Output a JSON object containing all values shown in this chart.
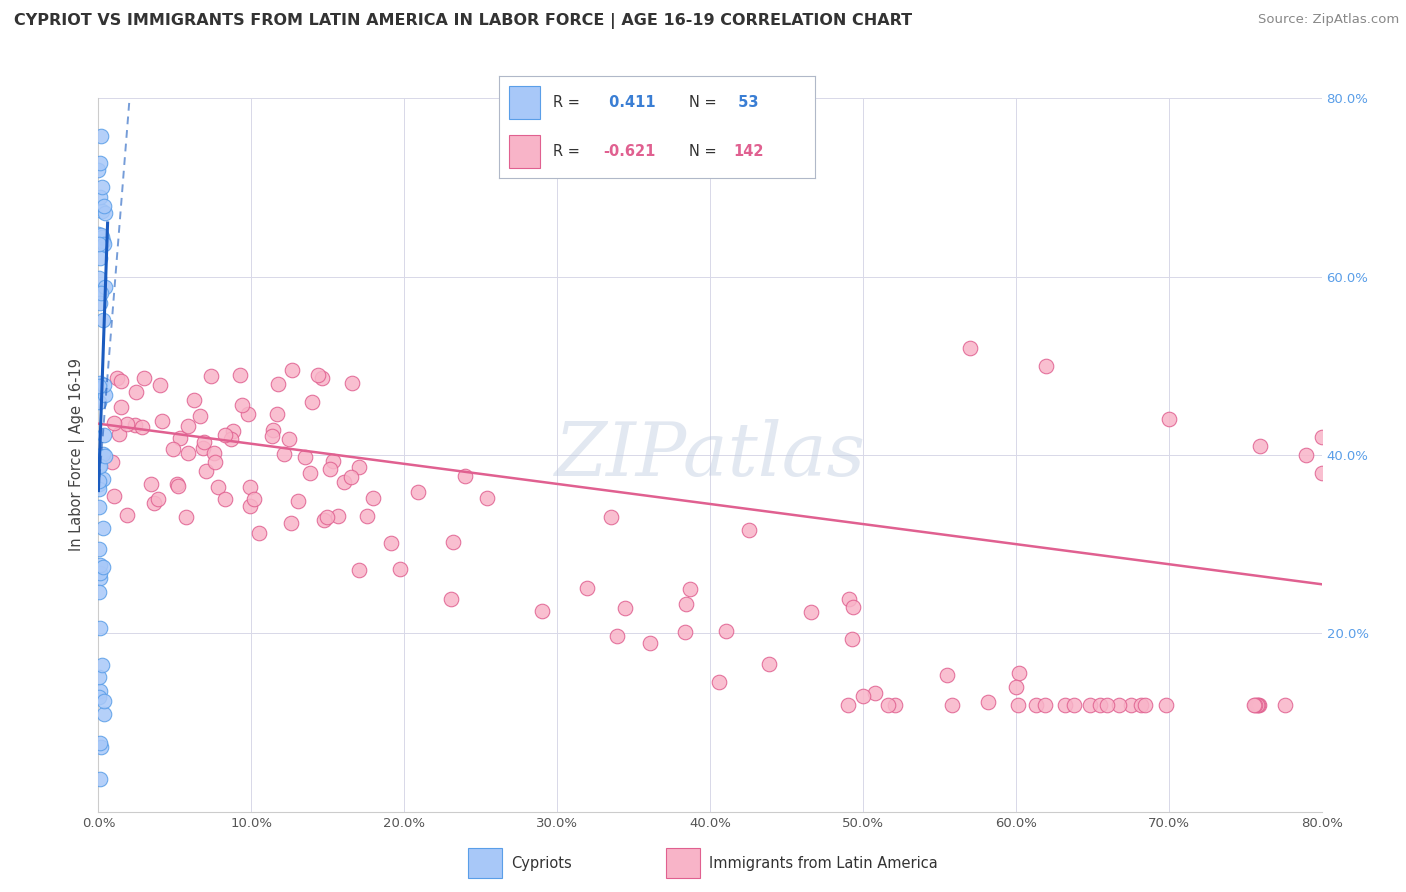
{
  "title": "CYPRIOT VS IMMIGRANTS FROM LATIN AMERICA IN LABOR FORCE | AGE 16-19 CORRELATION CHART",
  "source": "Source: ZipAtlas.com",
  "ylabel": "In Labor Force | Age 16-19",
  "xlim": [
    0.0,
    0.8
  ],
  "ylim": [
    0.0,
    0.8
  ],
  "legend_r1": " 0.411",
  "legend_n1": " 53",
  "legend_r2": "-0.621",
  "legend_n2": "142",
  "cypriot_color": "#a8c8f8",
  "cypriot_edge_color": "#5a9ee8",
  "latin_color": "#f8b4c8",
  "latin_edge_color": "#e06090",
  "trend_cypriot_color": "#1a5bbf",
  "trend_latin_color": "#e06090",
  "watermark_color": "#c8d8f0",
  "background_color": "#ffffff",
  "grid_color": "#d8d8e8",
  "right_tick_color": "#5a9ee8",
  "title_color": "#333333",
  "source_color": "#888888"
}
